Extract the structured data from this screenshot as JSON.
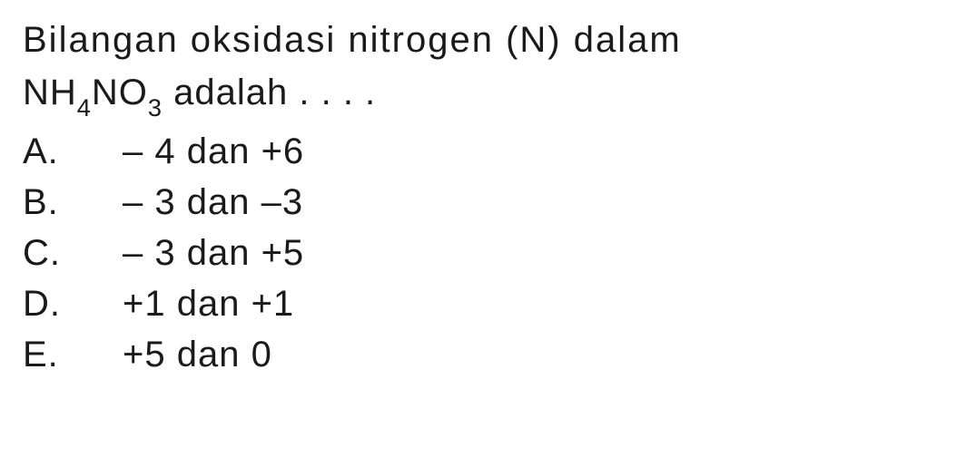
{
  "question": {
    "line1": "Bilangan oksidasi nitrogen (N) dalam",
    "formula_prefix": "NH",
    "formula_sub1": "4",
    "formula_mid": "NO",
    "formula_sub2": "3",
    "formula_suffix": " adalah . . . ."
  },
  "options": [
    {
      "letter": "A.",
      "text": "– 4 dan +6"
    },
    {
      "letter": "B.",
      "text": "– 3 dan –3"
    },
    {
      "letter": "C.",
      "text": "– 3 dan +5"
    },
    {
      "letter": "D.",
      "text": "+1 dan +1"
    },
    {
      "letter": "E.",
      "text": "+5 dan 0"
    }
  ],
  "style": {
    "background_color": "#ffffff",
    "text_color": "#1a1a1a",
    "font_size_pt": 30,
    "font_family": "Arial"
  }
}
